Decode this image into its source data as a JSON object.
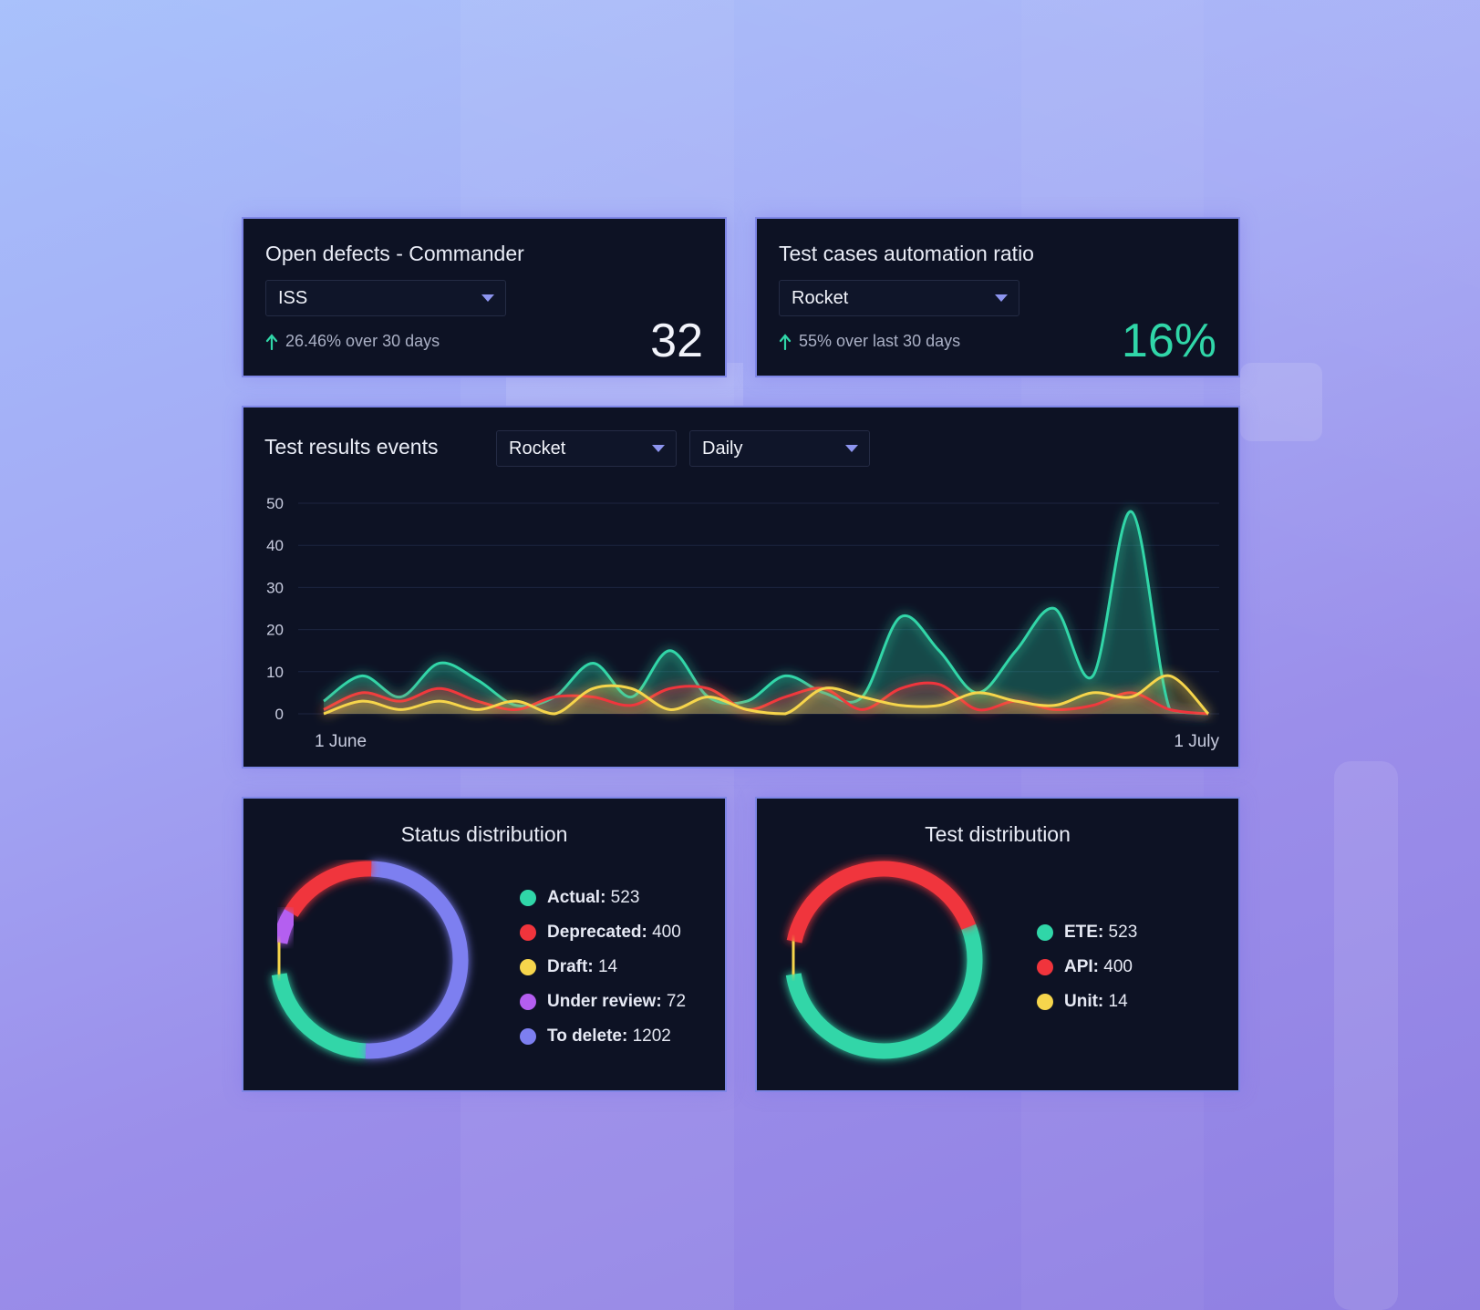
{
  "colors": {
    "teal": "#30d6a8",
    "red": "#f0343c",
    "yellow": "#f6d54c",
    "purple": "#b45ef0",
    "blue": "#7d7ff0",
    "accent": "#8d95ef",
    "card_bg": "#0d1224"
  },
  "defects_card": {
    "title": "Open defects - Commander",
    "select_value": "ISS",
    "trend_icon": "arrow-up-icon",
    "trend_text": "26.46% over 30 days",
    "value": "32"
  },
  "automation_card": {
    "title": "Test cases automation ratio",
    "select_value": "Rocket",
    "trend_icon": "arrow-up-icon",
    "trend_text": "55% over last 30 days",
    "value": "16%"
  },
  "events_card": {
    "title": "Test results events",
    "project_select": "Rocket",
    "period_select": "Daily"
  },
  "chart_data": [
    {
      "type": "area",
      "ylim": [
        0,
        50
      ],
      "yticks": [
        0,
        10,
        20,
        30,
        40,
        50
      ],
      "x_tick_labels": [
        "1 June",
        "1 July"
      ],
      "grid": true,
      "x": [
        "1 June",
        "2 June",
        "3 June",
        "4 June",
        "5 June",
        "6 June",
        "7 June",
        "8 June",
        "9 June",
        "10 June",
        "11 June",
        "12 June",
        "13 June",
        "14 June",
        "15 June",
        "16 June",
        "17 June",
        "18 June",
        "19 June",
        "20 June",
        "21 June",
        "22 June",
        "23 June",
        "24 June",
        "25 June",
        "26 June",
        "27 June",
        "28 June",
        "29 June",
        "30 June",
        "1 July"
      ],
      "series": [
        {
          "color": "#30d6a8",
          "values": [
            3,
            9,
            4,
            12,
            8,
            2,
            4,
            12,
            4,
            15,
            4,
            3,
            9,
            5,
            4,
            23,
            15,
            5,
            15,
            25,
            9,
            48,
            1,
            0,
            0,
            0,
            0,
            0,
            0,
            0,
            0
          ]
        },
        {
          "color": "#f0343c",
          "values": [
            1,
            5,
            3,
            6,
            3,
            1,
            4,
            4,
            2,
            6,
            6,
            1,
            4,
            6,
            1,
            6,
            7,
            1,
            3,
            1,
            2,
            5,
            1,
            0,
            0,
            0,
            0,
            0,
            0,
            0,
            0
          ]
        },
        {
          "color": "#f6d54c",
          "values": [
            0,
            3,
            1,
            3,
            1,
            3,
            0,
            6,
            6,
            1,
            4,
            1,
            0,
            6,
            4,
            2,
            2,
            5,
            3,
            2,
            5,
            4,
            9,
            0,
            0,
            0,
            0,
            0,
            0,
            0,
            0
          ]
        }
      ]
    },
    {
      "type": "pie",
      "title": "Status distribution",
      "labels": [
        "Actual",
        "Deprecated",
        "Draft",
        "Under review",
        "To delete"
      ],
      "values": [
        523,
        400,
        14,
        72,
        1202
      ],
      "colors": [
        "#30d6a8",
        "#f0343c",
        "#f6d54c",
        "#b45ef0",
        "#7d7ff0"
      ]
    },
    {
      "type": "pie",
      "title": "Test distribution",
      "labels": [
        "ETE",
        "API",
        "Unit"
      ],
      "values": [
        523,
        400,
        14
      ],
      "colors": [
        "#30d6a8",
        "#f0343c",
        "#f6d54c"
      ]
    }
  ],
  "status_card": {
    "title": "Status distribution",
    "legend": [
      {
        "name": "Actual:",
        "value": "523",
        "color": "#30d6a8"
      },
      {
        "name": "Deprecated:",
        "value": "400",
        "color": "#f0343c"
      },
      {
        "name": "Draft:",
        "value": "14",
        "color": "#f6d54c"
      },
      {
        "name": "Under review:",
        "value": "72",
        "color": "#b45ef0"
      },
      {
        "name": "To delete:",
        "value": "1202",
        "color": "#7d7ff0"
      }
    ]
  },
  "test_card": {
    "title": "Test distribution",
    "legend": [
      {
        "name": "ETE:",
        "value": "523",
        "color": "#30d6a8"
      },
      {
        "name": "API:",
        "value": "400",
        "color": "#f0343c"
      },
      {
        "name": "Unit:",
        "value": "14",
        "color": "#f6d54c"
      }
    ]
  }
}
